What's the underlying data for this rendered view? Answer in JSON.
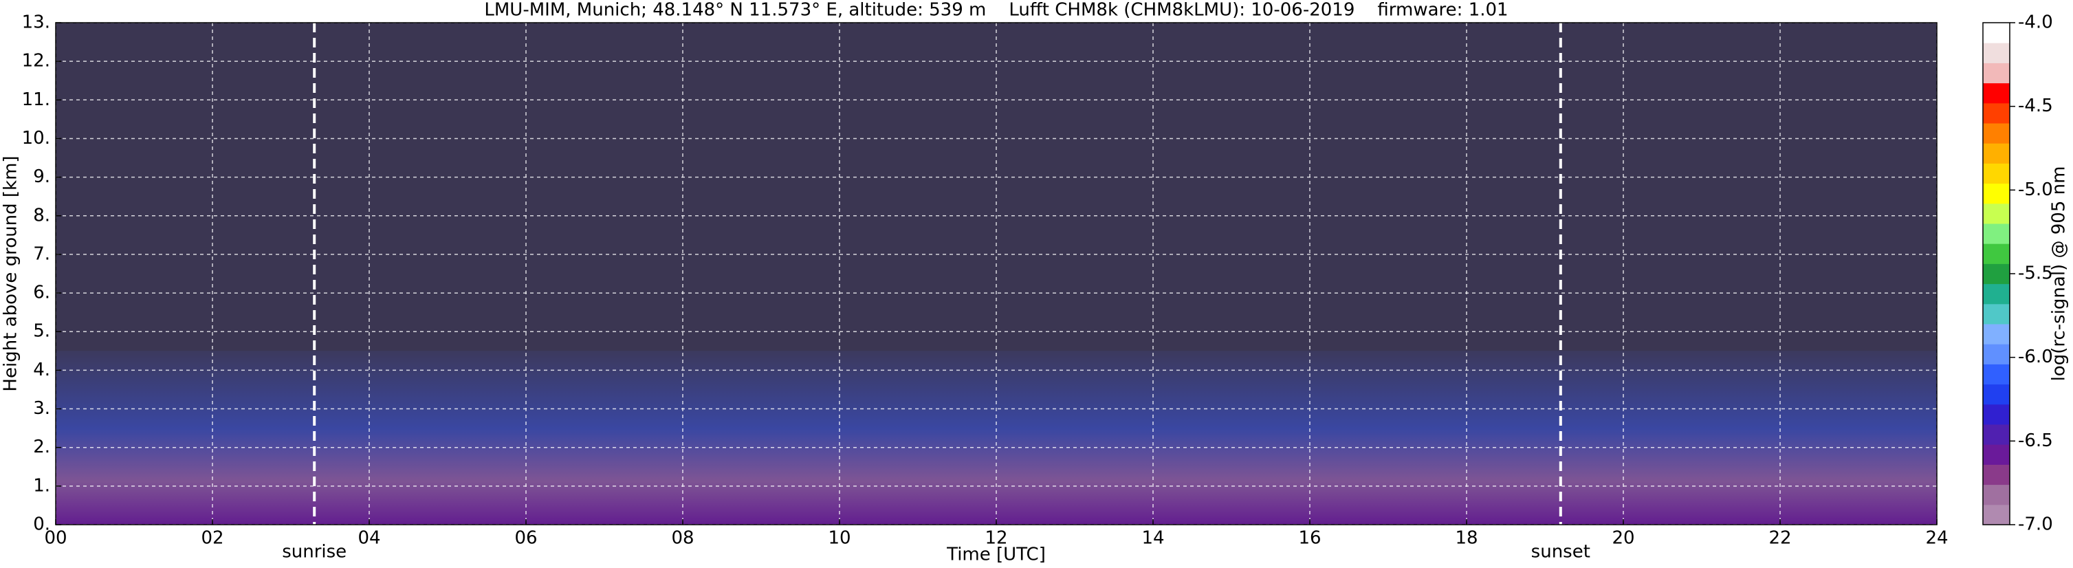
{
  "chart_data": {
    "type": "heatmap",
    "title": "LMU-MIM, Munich; 48.148° N 11.573° E, altitude: 539 m    Lufft CHM8k (CHM8kLMU): 10-06-2019    firmware: 1.01",
    "x_label": "Time [UTC]",
    "y_label": "Height above ground [km]",
    "colorbar_label": "log(rc-signal) @ 905 nm",
    "xlim": [
      0,
      24
    ],
    "ylim": [
      0,
      13
    ],
    "xticks": [
      {
        "value": 0,
        "label": "00"
      },
      {
        "value": 2,
        "label": "02"
      },
      {
        "value": 4,
        "label": "04"
      },
      {
        "value": 6,
        "label": "06"
      },
      {
        "value": 8,
        "label": "08"
      },
      10,
      12,
      14,
      16,
      18,
      20,
      22,
      24
    ],
    "yticks": [
      {
        "value": 0,
        "label": "0."
      },
      {
        "value": 1,
        "label": "1."
      },
      {
        "value": 2,
        "label": "2."
      },
      {
        "value": 3,
        "label": "3."
      },
      {
        "value": 4,
        "label": "4."
      },
      {
        "value": 5,
        "label": "5."
      },
      {
        "value": 6,
        "label": "6."
      },
      {
        "value": 7,
        "label": "7."
      },
      {
        "value": 8,
        "label": "8."
      },
      {
        "value": 9,
        "label": "9."
      },
      {
        "value": 10,
        "label": "10."
      },
      {
        "value": 11,
        "label": "11."
      },
      {
        "value": 12,
        "label": "12."
      },
      {
        "value": 13,
        "label": "13."
      }
    ],
    "grid": true,
    "annotations": [
      {
        "text": "sunrise",
        "x": 3.3
      },
      {
        "text": "sunset",
        "x": 19.2
      }
    ],
    "colorbar_lim": [
      -7,
      -4
    ],
    "colorbar_ticks": [
      {
        "value": -4,
        "label": "-4.0"
      },
      {
        "value": -4.5,
        "label": "-4.5"
      },
      {
        "value": -5,
        "label": "-5.0"
      },
      {
        "value": -5.5,
        "label": "-5.5"
      },
      {
        "value": -6,
        "label": "-6.0"
      },
      {
        "value": -6.5,
        "label": "-6.5"
      },
      {
        "value": -7,
        "label": "-7.0"
      }
    ],
    "colormap": [
      "#b08ab0",
      "#a070a0",
      "#8a3a8a",
      "#6a1a9a",
      "#5020b0",
      "#3020d0",
      "#2040f0",
      "#3060ff",
      "#6090ff",
      "#80b0ff",
      "#50c8c8",
      "#20b090",
      "#20a040",
      "#40c840",
      "#80f080",
      "#c8ff50",
      "#ffff00",
      "#ffd700",
      "#ffb000",
      "#ff8000",
      "#ff4000",
      "#ff0000",
      "#f2b9b9",
      "#f0dede",
      "#ffffff"
    ]
  }
}
